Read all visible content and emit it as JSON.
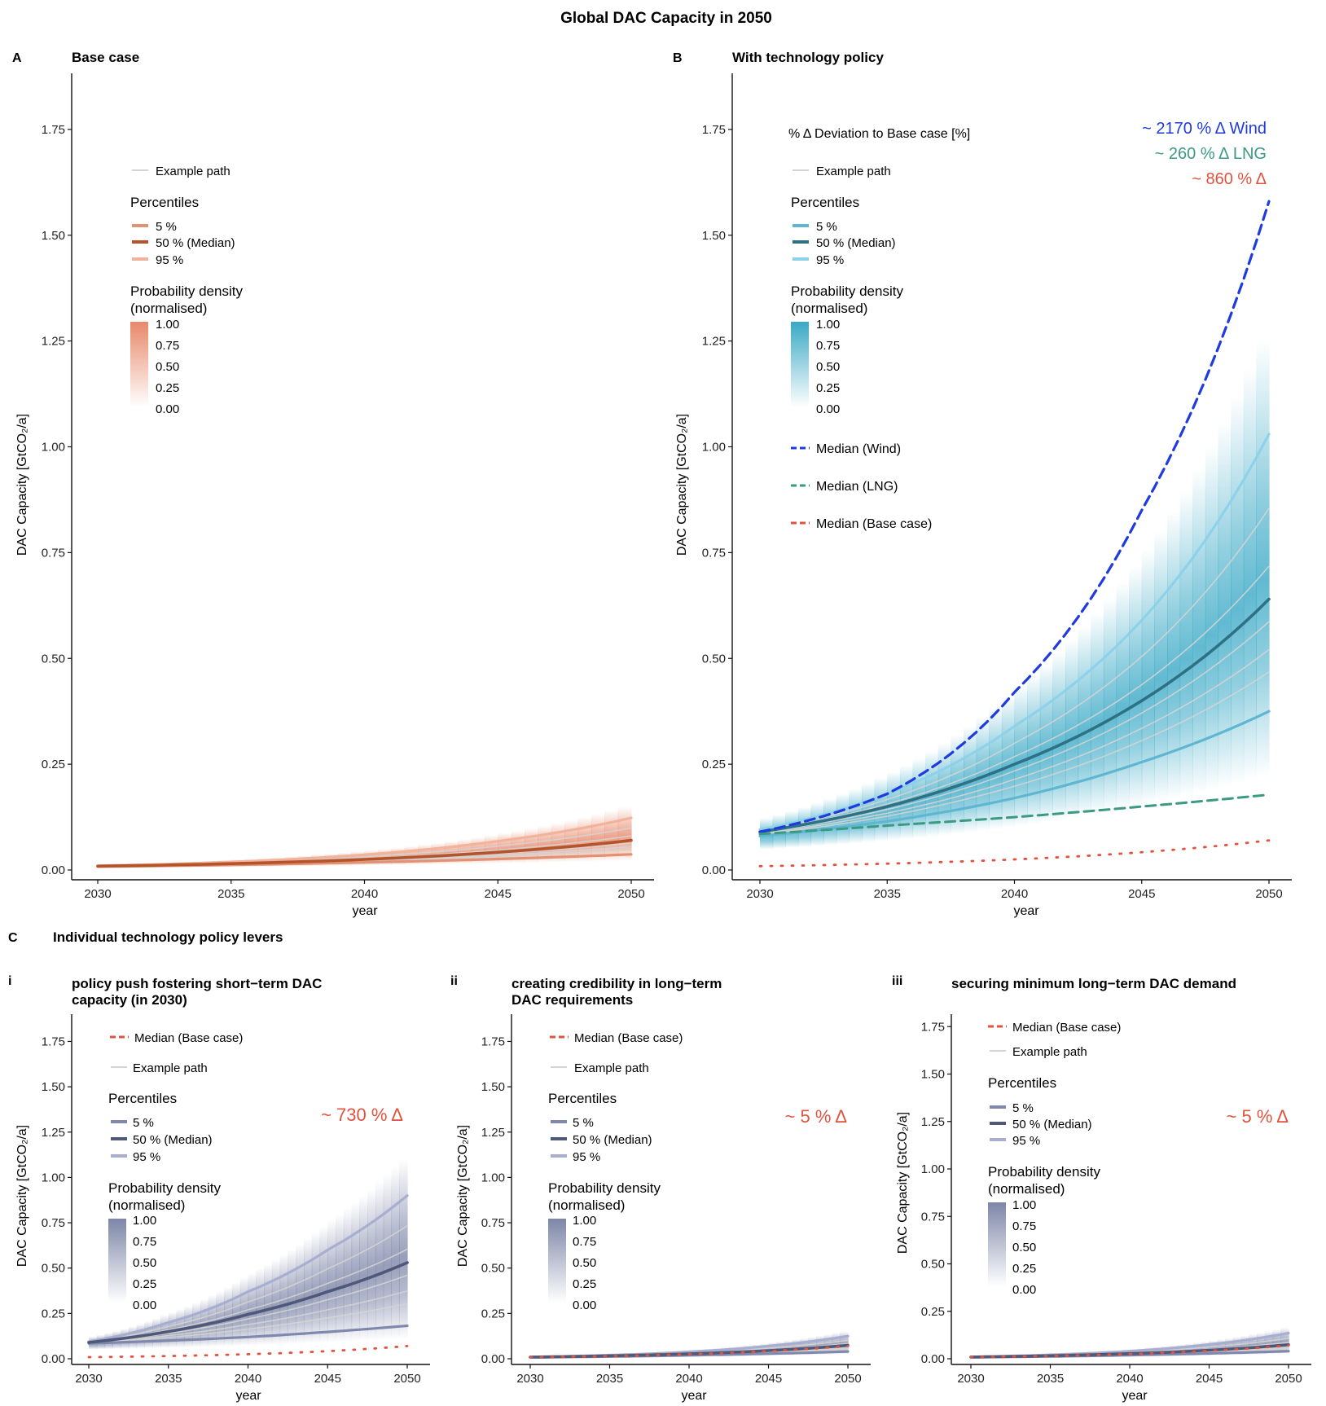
{
  "figure_title": "Global DAC Capacity in 2050",
  "section_c": {
    "letter": "C",
    "title": "Individual technology policy levers"
  },
  "colors": {
    "base_fill": "#e8886a",
    "base_p5": "#e39173",
    "base_p50": "#b5532b",
    "base_p95": "#f1b39b",
    "policy_fill": "#3aa9c6",
    "policy_p5": "#5fb6d0",
    "policy_p50": "#2e7184",
    "policy_p95": "#8dd2ea",
    "lever_fill": "#7d86a8",
    "lever_p5": "#8089ad",
    "lever_p50": "#4f5878",
    "lever_p95": "#a8aed0",
    "example_path": "#d4d4d4",
    "wind": "#1f3adf",
    "lng": "#3c9a82",
    "base_median": "#e0533e"
  },
  "panels": [
    {
      "letter": "A",
      "title": "Base case",
      "legend": {
        "example_path": "Example path",
        "percentiles_title": "Percentiles",
        "p5": "5 %",
        "p50": "50 % (Median)",
        "p95": "95 %",
        "density_title_1": "Probability density",
        "density_title_2": "(normalised)",
        "density_ticks": [
          "1.00",
          "0.75",
          "0.50",
          "0.25",
          "0.00"
        ]
      }
    },
    {
      "letter": "B",
      "title": "With technology policy",
      "legend": {
        "deviation_title": "% Δ  Deviation to Base case [%]",
        "example_path": "Example path",
        "percentiles_title": "Percentiles",
        "p5": "5 %",
        "p50": "50 % (Median)",
        "p95": "95 %",
        "density_title_1": "Probability density",
        "density_title_2": "(normalised)",
        "density_ticks": [
          "1.00",
          "0.75",
          "0.50",
          "0.25",
          "0.00"
        ],
        "median_wind": "Median (Wind)",
        "median_lng": "Median (LNG)",
        "median_base": "Median (Base case)"
      },
      "annotations": {
        "wind": "~ 2170 % Δ Wind",
        "lng": "~ 260 % Δ LNG",
        "total": "~ 860 % Δ"
      }
    },
    {
      "letter": "i",
      "title_1": "policy push fostering short−term DAC",
      "title_2": " capacity (in 2030)",
      "legend": {
        "median_base": "Median (Base case)",
        "example_path": "Example path",
        "percentiles_title": "Percentiles",
        "p5": "5 %",
        "p50": "50 % (Median)",
        "p95": "95 %",
        "density_title_1": "Probability density",
        "density_title_2": "(normalised)",
        "density_ticks": [
          "1.00",
          "0.75",
          "0.50",
          "0.25",
          "0.00"
        ]
      },
      "annotation": "~ 730 % Δ"
    },
    {
      "letter": "ii",
      "title_1": "creating credibility in long−term",
      "title_2": " DAC requirements",
      "legend": {
        "median_base": "Median (Base case)",
        "example_path": "Example path",
        "percentiles_title": "Percentiles",
        "p5": "5 %",
        "p50": "50 % (Median)",
        "p95": "95 %",
        "density_title_1": "Probability density",
        "density_title_2": "(normalised)",
        "density_ticks": [
          "1.00",
          "0.75",
          "0.50",
          "0.25",
          "0.00"
        ]
      },
      "annotation": "~ 5 % Δ"
    },
    {
      "letter": "iii",
      "title_1": "securing minimum long−term DAC demand",
      "title_2": "",
      "legend": {
        "median_base": "Median (Base case)",
        "example_path": "Example path",
        "percentiles_title": "Percentiles",
        "p5": "5 %",
        "p50": "50 % (Median)",
        "p95": "95 %",
        "density_title_1": "Probability density",
        "density_title_2": "(normalised)",
        "density_ticks": [
          "1.00",
          "0.75",
          "0.50",
          "0.25",
          "0.00"
        ]
      },
      "annotation": "~ 5 % Δ"
    }
  ],
  "chart_data": [
    {
      "type": "line",
      "panel": "A",
      "title": "Base case",
      "xlabel": "year",
      "ylabel": "DAC Capacity [GtCO₂/a]",
      "xlim": [
        2030,
        2050
      ],
      "ylim": [
        0,
        1.8
      ],
      "x_ticks": [
        "2030",
        "2035",
        "2040",
        "2045",
        "2050"
      ],
      "y_ticks": [
        "0.00",
        "0.25",
        "0.50",
        "0.75",
        "1.00",
        "1.25",
        "1.50",
        "1.75"
      ],
      "x": [
        2030,
        2035,
        2040,
        2045,
        2050
      ],
      "series": [
        {
          "name": "5 %",
          "values": [
            0.008,
            0.012,
            0.018,
            0.026,
            0.037
          ]
        },
        {
          "name": "50 % (Median)",
          "values": [
            0.009,
            0.015,
            0.025,
            0.042,
            0.07
          ]
        },
        {
          "name": "95 %",
          "values": [
            0.01,
            0.019,
            0.036,
            0.068,
            0.123
          ]
        }
      ]
    },
    {
      "type": "line",
      "panel": "B",
      "title": "With technology policy",
      "xlabel": "year",
      "ylabel": "DAC Capacity [GtCO₂/a]",
      "xlim": [
        2030,
        2050
      ],
      "ylim": [
        0,
        1.8
      ],
      "x_ticks": [
        "2030",
        "2035",
        "2040",
        "2045",
        "2050"
      ],
      "y_ticks": [
        "0.00",
        "0.25",
        "0.50",
        "0.75",
        "1.00",
        "1.25",
        "1.50",
        "1.75"
      ],
      "x": [
        2030,
        2035,
        2040,
        2045,
        2050
      ],
      "series": [
        {
          "name": "5 %",
          "values": [
            0.08,
            0.115,
            0.17,
            0.255,
            0.375
          ]
        },
        {
          "name": "50 % (Median)",
          "values": [
            0.09,
            0.15,
            0.25,
            0.4,
            0.64
          ]
        },
        {
          "name": "95 %",
          "values": [
            0.095,
            0.18,
            0.34,
            0.59,
            1.03
          ]
        },
        {
          "name": "Median (Wind)",
          "values": [
            0.09,
            0.18,
            0.42,
            0.85,
            1.58
          ]
        },
        {
          "name": "Median (LNG)",
          "values": [
            0.085,
            0.105,
            0.125,
            0.15,
            0.178
          ]
        },
        {
          "name": "Median (Base case)",
          "values": [
            0.009,
            0.015,
            0.025,
            0.042,
            0.07
          ]
        }
      ]
    },
    {
      "type": "line",
      "panel": "i",
      "xlabel": "year",
      "ylabel": "DAC Capacity [GtCO₂/a]",
      "xlim": [
        2030,
        2050
      ],
      "ylim": [
        0,
        1.85
      ],
      "x_ticks": [
        "2030",
        "2035",
        "2040",
        "2045",
        "2050"
      ],
      "y_ticks": [
        "0.00",
        "0.25",
        "0.50",
        "0.75",
        "1.00",
        "1.25",
        "1.50",
        "1.75"
      ],
      "x": [
        2030,
        2035,
        2040,
        2045,
        2050
      ],
      "series": [
        {
          "name": "5 %",
          "values": [
            0.085,
            0.1,
            0.12,
            0.148,
            0.182
          ]
        },
        {
          "name": "50 % (Median)",
          "values": [
            0.09,
            0.15,
            0.245,
            0.37,
            0.53
          ]
        },
        {
          "name": "95 %",
          "values": [
            0.095,
            0.2,
            0.37,
            0.6,
            0.9
          ]
        },
        {
          "name": "Median (Base case)",
          "values": [
            0.009,
            0.015,
            0.025,
            0.042,
            0.07
          ]
        }
      ]
    },
    {
      "type": "line",
      "panel": "ii",
      "xlabel": "year",
      "ylabel": "DAC Capacity [GtCO₂/a]",
      "xlim": [
        2030,
        2050
      ],
      "ylim": [
        0,
        1.85
      ],
      "x_ticks": [
        "2030",
        "2035",
        "2040",
        "2045",
        "2050"
      ],
      "y_ticks": [
        "0.00",
        "0.25",
        "0.50",
        "0.75",
        "1.00",
        "1.25",
        "1.50",
        "1.75"
      ],
      "x": [
        2030,
        2035,
        2040,
        2045,
        2050
      ],
      "series": [
        {
          "name": "5 %",
          "values": [
            0.008,
            0.012,
            0.019,
            0.028,
            0.04
          ]
        },
        {
          "name": "50 % (Median)",
          "values": [
            0.009,
            0.016,
            0.027,
            0.045,
            0.074
          ]
        },
        {
          "name": "95 %",
          "values": [
            0.01,
            0.02,
            0.038,
            0.07,
            0.125
          ]
        },
        {
          "name": "Median (Base case)",
          "values": [
            0.009,
            0.015,
            0.025,
            0.042,
            0.07
          ]
        }
      ]
    },
    {
      "type": "line",
      "panel": "iii",
      "xlabel": "year",
      "ylabel": "DAC Capacity [GtCO₂/a]",
      "xlim": [
        2030,
        2050
      ],
      "ylim": [
        0,
        1.85
      ],
      "x_ticks": [
        "2030",
        "2035",
        "2040",
        "2045",
        "2050"
      ],
      "y_ticks": [
        "0.00",
        "0.25",
        "0.50",
        "0.75",
        "1.00",
        "1.25",
        "1.50",
        "1.75"
      ],
      "x": [
        2030,
        2035,
        2040,
        2045,
        2050
      ],
      "series": [
        {
          "name": "5 %",
          "values": [
            0.008,
            0.012,
            0.019,
            0.028,
            0.04
          ]
        },
        {
          "name": "50 % (Median)",
          "values": [
            0.009,
            0.016,
            0.027,
            0.045,
            0.074
          ]
        },
        {
          "name": "95 %",
          "values": [
            0.01,
            0.021,
            0.04,
            0.075,
            0.135
          ]
        },
        {
          "name": "Median (Base case)",
          "values": [
            0.009,
            0.015,
            0.025,
            0.042,
            0.07
          ]
        }
      ]
    }
  ]
}
